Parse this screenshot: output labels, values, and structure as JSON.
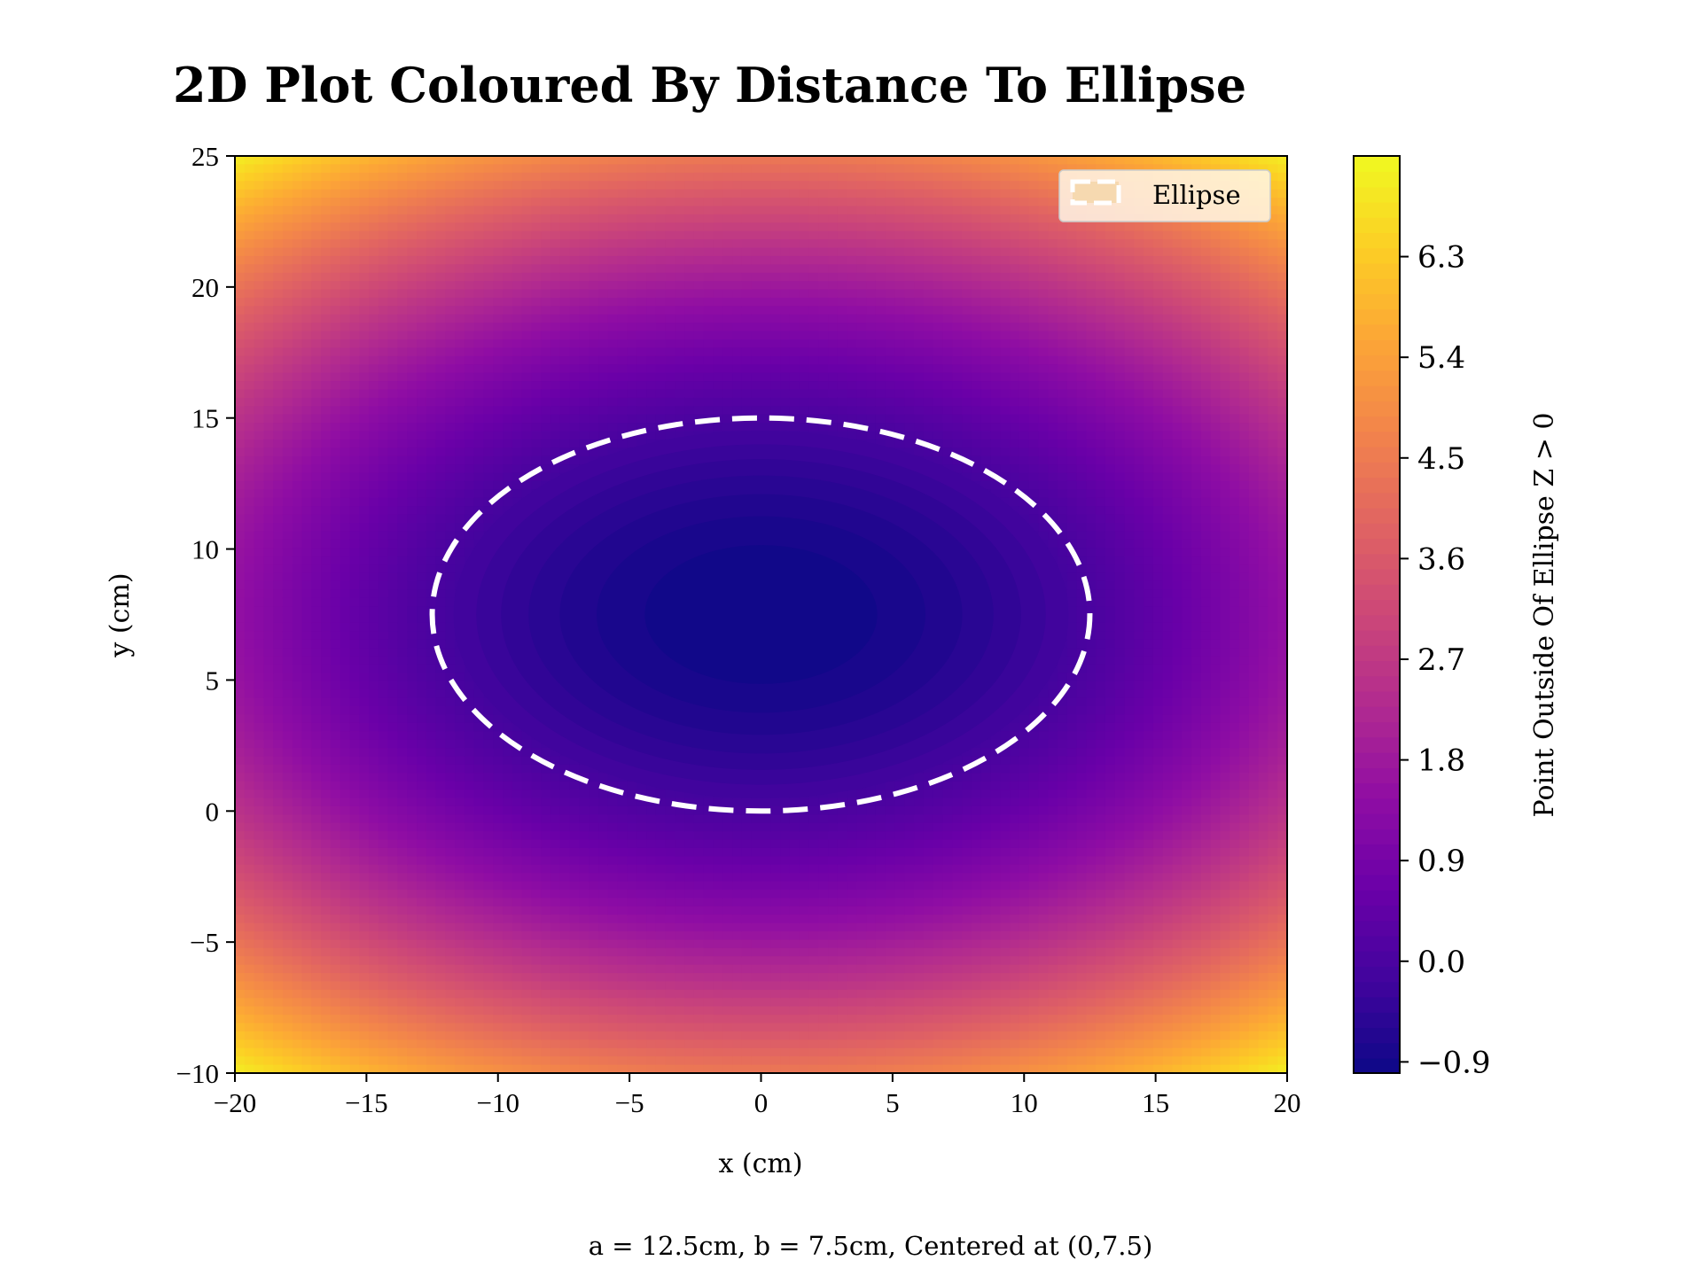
{
  "chart_data": {
    "type": "heatmap",
    "title": "2D Plot Coloured By Distance To Ellipse",
    "xlabel": "x (cm)",
    "ylabel": "y (cm)",
    "caption": "a = 12.5cm, b = 7.5cm, Centered at (0,7.5)",
    "xlim": [
      -20,
      20
    ],
    "ylim": [
      -10,
      25
    ],
    "x_ticks": [
      "−20",
      "−15",
      "−10",
      "−5",
      "0",
      "5",
      "10",
      "15",
      "20"
    ],
    "x_tick_values": [
      -20,
      -15,
      -10,
      -5,
      0,
      5,
      10,
      15,
      20
    ],
    "y_ticks": [
      "−10",
      "−5",
      "0",
      "5",
      "10",
      "15",
      "20",
      "25"
    ],
    "y_tick_values": [
      -10,
      -5,
      0,
      5,
      10,
      15,
      20,
      25
    ],
    "ellipse": {
      "a": 12.5,
      "b": 7.5,
      "center": [
        0,
        7.5
      ]
    },
    "z_range": [
      -1,
      7.2
    ],
    "colormap": "plasma",
    "colorbar": {
      "label": "Point Outside Of Ellipse Z > 0",
      "ticks": [
        "−0.9",
        "0.0",
        "0.9",
        "1.8",
        "2.7",
        "3.6",
        "4.5",
        "5.4",
        "6.3"
      ],
      "tick_values": [
        -0.9,
        0.0,
        0.9,
        1.8,
        2.7,
        3.6,
        4.5,
        5.4,
        6.3
      ]
    },
    "legend": {
      "label": "Ellipse",
      "position": "top-right"
    },
    "grid": false
  }
}
